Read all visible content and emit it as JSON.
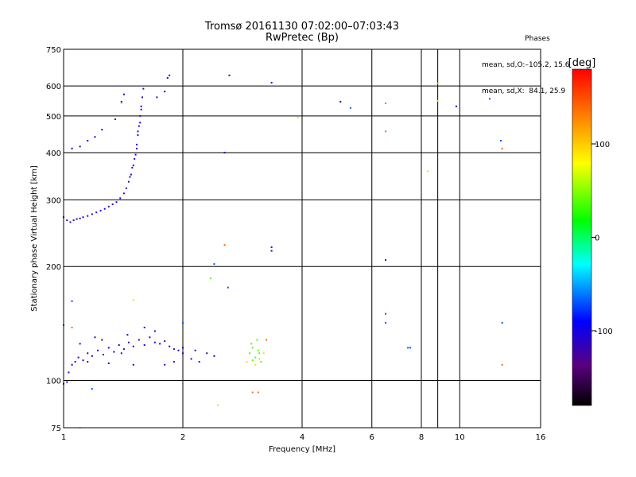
{
  "header": {
    "title_line1": "Tromsø 20161130 07:02:00–07:03:43",
    "title_line2": "RwPretec (Bp)"
  },
  "phases_box": {
    "heading": "Phases",
    "line_o": "mean, sd,O:–105.2, 15.6",
    "line_x": "mean, sd,X:  84.1, 25.9"
  },
  "chart_data": {
    "type": "scatter",
    "title": "Tromsø 20161130 07:02:00–07:03:43",
    "subtitle": "RwPretec (Bp)",
    "xlabel": "Frequency [MHz]",
    "ylabel": "Stationary phase Virtual Height [km]",
    "x_scale": "log",
    "y_scale": "log",
    "xlim": [
      1,
      16
    ],
    "ylim": [
      75,
      750
    ],
    "x_ticks": [
      1,
      2,
      4,
      6,
      8,
      10,
      16
    ],
    "x_tick_labels": [
      "1",
      "2",
      "4",
      "6",
      "8",
      "10",
      "16"
    ],
    "y_ticks": [
      75,
      100,
      200,
      300,
      400,
      500,
      600,
      750
    ],
    "y_tick_labels": [
      "75",
      "100",
      "200",
      "300",
      "400",
      "500",
      "600",
      "750"
    ],
    "grid": true,
    "colorbar": {
      "label": "[deg]",
      "min": -180,
      "max": 180,
      "ticks": [
        -100,
        0,
        100
      ],
      "tick_labels": [
        "-100",
        "0",
        "100"
      ],
      "colors": [
        "#000000",
        "#5a0080",
        "#0000ff",
        "#00ffff",
        "#00ff00",
        "#ffff00",
        "#ff8000",
        "#ff0000"
      ]
    },
    "series": [
      {
        "phase_deg": -110,
        "points": [
          [
            1.0,
            270
          ],
          [
            1.02,
            265
          ],
          [
            1.04,
            262
          ],
          [
            1.06,
            265
          ],
          [
            1.08,
            267
          ],
          [
            1.1,
            268
          ],
          [
            1.12,
            270
          ],
          [
            1.15,
            272
          ],
          [
            1.18,
            275
          ],
          [
            1.21,
            278
          ],
          [
            1.24,
            281
          ],
          [
            1.27,
            284
          ],
          [
            1.3,
            288
          ],
          [
            1.33,
            292
          ],
          [
            1.36,
            296
          ],
          [
            1.39,
            303
          ],
          [
            1.42,
            312
          ],
          [
            1.44,
            322
          ],
          [
            1.46,
            335
          ],
          [
            1.48,
            350
          ],
          [
            1.5,
            370
          ],
          [
            1.52,
            395
          ],
          [
            1.53,
            420
          ],
          [
            1.54,
            445
          ],
          [
            1.55,
            470
          ],
          [
            1.56,
            500
          ],
          [
            1.57,
            530
          ],
          [
            1.58,
            560
          ],
          [
            1.59,
            590
          ],
          [
            1.47,
            345
          ],
          [
            1.49,
            365
          ],
          [
            1.51,
            385
          ],
          [
            1.53,
            410
          ],
          [
            1.54,
            455
          ],
          [
            1.56,
            480
          ],
          [
            1.57,
            520
          ],
          [
            1.05,
            410
          ],
          [
            1.1,
            415
          ],
          [
            1.15,
            430
          ],
          [
            1.2,
            440
          ],
          [
            1.25,
            460
          ],
          [
            1.35,
            490
          ],
          [
            1.4,
            545
          ],
          [
            1.42,
            570
          ],
          [
            1.72,
            560
          ],
          [
            1.8,
            580
          ],
          [
            1.83,
            630
          ],
          [
            1.85,
            640
          ],
          [
            1.03,
            105
          ],
          [
            1.05,
            110
          ],
          [
            1.07,
            112
          ],
          [
            1.09,
            115
          ],
          [
            1.12,
            113
          ],
          [
            1.15,
            118
          ],
          [
            1.18,
            116
          ],
          [
            1.22,
            120
          ],
          [
            1.26,
            117
          ],
          [
            1.3,
            122
          ],
          [
            1.34,
            119
          ],
          [
            1.38,
            124
          ],
          [
            1.42,
            121
          ],
          [
            1.46,
            126
          ],
          [
            1.5,
            123
          ],
          [
            1.55,
            128
          ],
          [
            1.6,
            124
          ],
          [
            1.65,
            130
          ],
          [
            1.7,
            126
          ],
          [
            1.75,
            125
          ],
          [
            1.8,
            127
          ],
          [
            1.85,
            123
          ],
          [
            1.9,
            121
          ],
          [
            1.95,
            120
          ],
          [
            2.0,
            118
          ],
          [
            2.1,
            114
          ],
          [
            2.2,
            112
          ],
          [
            2.3,
            118
          ],
          [
            2.4,
            116
          ],
          [
            1.1,
            125
          ],
          [
            1.2,
            130
          ],
          [
            1.4,
            118
          ],
          [
            1.6,
            138
          ],
          [
            1.8,
            110
          ],
          [
            1.9,
            112
          ],
          [
            2.0,
            122
          ],
          [
            2.15,
            120
          ],
          [
            1.15,
            112
          ],
          [
            1.3,
            111
          ],
          [
            1.5,
            110
          ],
          [
            1.7,
            135
          ],
          [
            1.25,
            128
          ],
          [
            1.45,
            132
          ],
          [
            1.02,
            99
          ],
          [
            1.0,
            98
          ],
          [
            2.55,
            400
          ],
          [
            2.62,
            640
          ],
          [
            3.35,
            612
          ],
          [
            5.0,
            545
          ],
          [
            9.8,
            530
          ],
          [
            6.5,
            208
          ],
          [
            3.35,
            220
          ],
          [
            3.35,
            225
          ]
        ]
      },
      {
        "phase_deg": -70,
        "points": [
          [
            1.0,
            140
          ],
          [
            1.18,
            95
          ],
          [
            1.05,
            162
          ],
          [
            2.6,
            176
          ],
          [
            2.0,
            142
          ],
          [
            6.5,
            150
          ],
          [
            6.5,
            142
          ],
          [
            7.4,
            122
          ],
          [
            7.5,
            122
          ],
          [
            12.8,
            142
          ],
          [
            12.7,
            430
          ],
          [
            11.9,
            555
          ],
          [
            5.3,
            525
          ],
          [
            2.4,
            203
          ]
        ]
      },
      {
        "phase_deg": 35,
        "points": [
          [
            2.95,
            118
          ],
          [
            3.0,
            122
          ],
          [
            3.05,
            115
          ],
          [
            3.1,
            120
          ],
          [
            3.15,
            112
          ],
          [
            2.98,
            125
          ],
          [
            3.08,
            128
          ],
          [
            3.12,
            118
          ],
          [
            3.0,
            113
          ],
          [
            8.8,
            610
          ],
          [
            2.35,
            186
          ]
        ]
      },
      {
        "phase_deg": 95,
        "points": [
          [
            3.05,
            110
          ],
          [
            3.12,
            114
          ],
          [
            2.9,
            112
          ],
          [
            3.2,
            118
          ],
          [
            1.4,
            540
          ],
          [
            3.9,
            495
          ],
          [
            8.8,
            548
          ],
          [
            8.3,
            357
          ],
          [
            1.5,
            163
          ],
          [
            1.1,
            75
          ],
          [
            2.45,
            86
          ]
        ]
      },
      {
        "phase_deg": 140,
        "points": [
          [
            1.05,
            138
          ],
          [
            3.0,
            93
          ],
          [
            3.1,
            93
          ],
          [
            2.55,
            228
          ],
          [
            3.25,
            128
          ],
          [
            6.5,
            455
          ],
          [
            6.5,
            540
          ],
          [
            12.8,
            410
          ],
          [
            12.8,
            110
          ]
        ]
      }
    ]
  }
}
